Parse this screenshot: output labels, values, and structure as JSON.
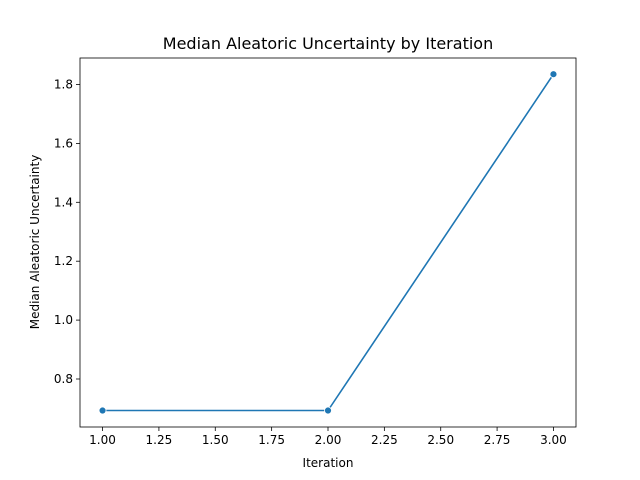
{
  "chart_data": {
    "type": "line",
    "title": "Median Aleatoric Uncertainty by Iteration",
    "xlabel": "Iteration",
    "ylabel": "Median Aleatoric Uncertainty",
    "xlim": [
      0.9,
      3.1
    ],
    "ylim": [
      0.637,
      1.89
    ],
    "x_ticks": [
      1.0,
      1.25,
      1.5,
      1.75,
      2.0,
      2.25,
      2.5,
      2.75,
      3.0
    ],
    "x_tick_labels": [
      "1.00",
      "1.25",
      "1.50",
      "1.75",
      "2.00",
      "2.25",
      "2.50",
      "2.75",
      "3.00"
    ],
    "y_ticks": [
      0.8,
      1.0,
      1.2,
      1.4,
      1.6,
      1.8
    ],
    "y_tick_labels": [
      "0.8",
      "1.0",
      "1.2",
      "1.4",
      "1.6",
      "1.8"
    ],
    "grid": false,
    "legend": false,
    "series": [
      {
        "x": [
          1,
          2,
          3
        ],
        "y": [
          0.693,
          0.693,
          1.835
        ],
        "color": "#1f77b4",
        "marker": "circle"
      }
    ]
  }
}
